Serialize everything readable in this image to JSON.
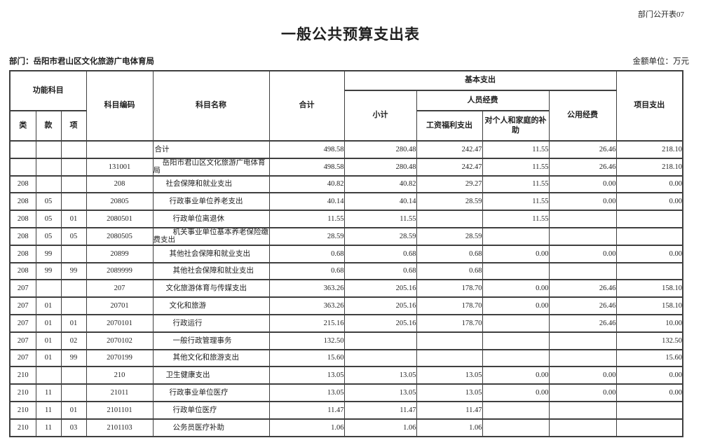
{
  "corner_note": "部门公开表07",
  "title": "一般公共预算支出表",
  "department": "部门：岳阳市君山区文化旅游广电体育局",
  "unit": "金额单位：万元",
  "colors": {
    "border": "#3f3f3f",
    "text": "#1f1f1f",
    "background": "#ffffff"
  },
  "header": {
    "func_subject": "功能科目",
    "lei": "类",
    "kuan": "款",
    "xiang": "项",
    "code": "科目编码",
    "name": "科目名称",
    "total": "合计",
    "basic": "基本支出",
    "subtotal": "小计",
    "personnel": "人员经费",
    "wage": "工资福利支出",
    "personal": "对个人和家庭的补助",
    "public": "公用经费",
    "project": "项目支出"
  },
  "rows": [
    {
      "lei": "",
      "kuan": "",
      "xiang": "",
      "code": "",
      "name": "合计",
      "indent": 0,
      "total": "498.58",
      "subtotal": "280.48",
      "wage": "242.47",
      "personal": "11.55",
      "public": "26.46",
      "project": "218.10"
    },
    {
      "lei": "",
      "kuan": "",
      "xiang": "",
      "code": "131001",
      "name": "岳阳市君山区文化旅游广电体育局",
      "indent": 1,
      "total": "498.58",
      "subtotal": "280.48",
      "wage": "242.47",
      "personal": "11.55",
      "public": "26.46",
      "project": "218.10"
    },
    {
      "lei": "208",
      "kuan": "",
      "xiang": "",
      "code": "208",
      "name": "社会保障和就业支出",
      "indent": 2,
      "total": "40.82",
      "subtotal": "40.82",
      "wage": "29.27",
      "personal": "11.55",
      "public": "0.00",
      "project": "0.00"
    },
    {
      "lei": "208",
      "kuan": "05",
      "xiang": "",
      "code": "20805",
      "name": "行政事业单位养老支出",
      "indent": 3,
      "total": "40.14",
      "subtotal": "40.14",
      "wage": "28.59",
      "personal": "11.55",
      "public": "0.00",
      "project": "0.00"
    },
    {
      "lei": "208",
      "kuan": "05",
      "xiang": "01",
      "code": "2080501",
      "name": "行政单位离退休",
      "indent": 4,
      "total": "11.55",
      "subtotal": "11.55",
      "wage": "",
      "personal": "11.55",
      "public": "",
      "project": ""
    },
    {
      "lei": "208",
      "kuan": "05",
      "xiang": "05",
      "code": "2080505",
      "name": "机关事业单位基本养老保险缴费支出",
      "indent": 4,
      "total": "28.59",
      "subtotal": "28.59",
      "wage": "28.59",
      "personal": "",
      "public": "",
      "project": ""
    },
    {
      "lei": "208",
      "kuan": "99",
      "xiang": "",
      "code": "20899",
      "name": "其他社会保障和就业支出",
      "indent": 3,
      "total": "0.68",
      "subtotal": "0.68",
      "wage": "0.68",
      "personal": "0.00",
      "public": "0.00",
      "project": "0.00"
    },
    {
      "lei": "208",
      "kuan": "99",
      "xiang": "99",
      "code": "2089999",
      "name": "其他社会保障和就业支出",
      "indent": 4,
      "total": "0.68",
      "subtotal": "0.68",
      "wage": "0.68",
      "personal": "",
      "public": "",
      "project": ""
    },
    {
      "lei": "207",
      "kuan": "",
      "xiang": "",
      "code": "207",
      "name": "文化旅游体育与传媒支出",
      "indent": 2,
      "total": "363.26",
      "subtotal": "205.16",
      "wage": "178.70",
      "personal": "0.00",
      "public": "26.46",
      "project": "158.10"
    },
    {
      "lei": "207",
      "kuan": "01",
      "xiang": "",
      "code": "20701",
      "name": "文化和旅游",
      "indent": 3,
      "total": "363.26",
      "subtotal": "205.16",
      "wage": "178.70",
      "personal": "0.00",
      "public": "26.46",
      "project": "158.10"
    },
    {
      "lei": "207",
      "kuan": "01",
      "xiang": "01",
      "code": "2070101",
      "name": "行政运行",
      "indent": 4,
      "total": "215.16",
      "subtotal": "205.16",
      "wage": "178.70",
      "personal": "",
      "public": "26.46",
      "project": "10.00"
    },
    {
      "lei": "207",
      "kuan": "01",
      "xiang": "02",
      "code": "2070102",
      "name": "一般行政管理事务",
      "indent": 4,
      "total": "132.50",
      "subtotal": "",
      "wage": "",
      "personal": "",
      "public": "",
      "project": "132.50"
    },
    {
      "lei": "207",
      "kuan": "01",
      "xiang": "99",
      "code": "2070199",
      "name": "其他文化和旅游支出",
      "indent": 4,
      "total": "15.60",
      "subtotal": "",
      "wage": "",
      "personal": "",
      "public": "",
      "project": "15.60"
    },
    {
      "lei": "210",
      "kuan": "",
      "xiang": "",
      "code": "210",
      "name": "卫生健康支出",
      "indent": 2,
      "total": "13.05",
      "subtotal": "13.05",
      "wage": "13.05",
      "personal": "0.00",
      "public": "0.00",
      "project": "0.00"
    },
    {
      "lei": "210",
      "kuan": "11",
      "xiang": "",
      "code": "21011",
      "name": "行政事业单位医疗",
      "indent": 3,
      "total": "13.05",
      "subtotal": "13.05",
      "wage": "13.05",
      "personal": "0.00",
      "public": "0.00",
      "project": "0.00"
    },
    {
      "lei": "210",
      "kuan": "11",
      "xiang": "01",
      "code": "2101101",
      "name": "行政单位医疗",
      "indent": 4,
      "total": "11.47",
      "subtotal": "11.47",
      "wage": "11.47",
      "personal": "",
      "public": "",
      "project": ""
    },
    {
      "lei": "210",
      "kuan": "11",
      "xiang": "03",
      "code": "2101103",
      "name": "公务员医疗补助",
      "indent": 4,
      "total": "1.06",
      "subtotal": "1.06",
      "wage": "1.06",
      "personal": "",
      "public": "",
      "project": ""
    }
  ]
}
